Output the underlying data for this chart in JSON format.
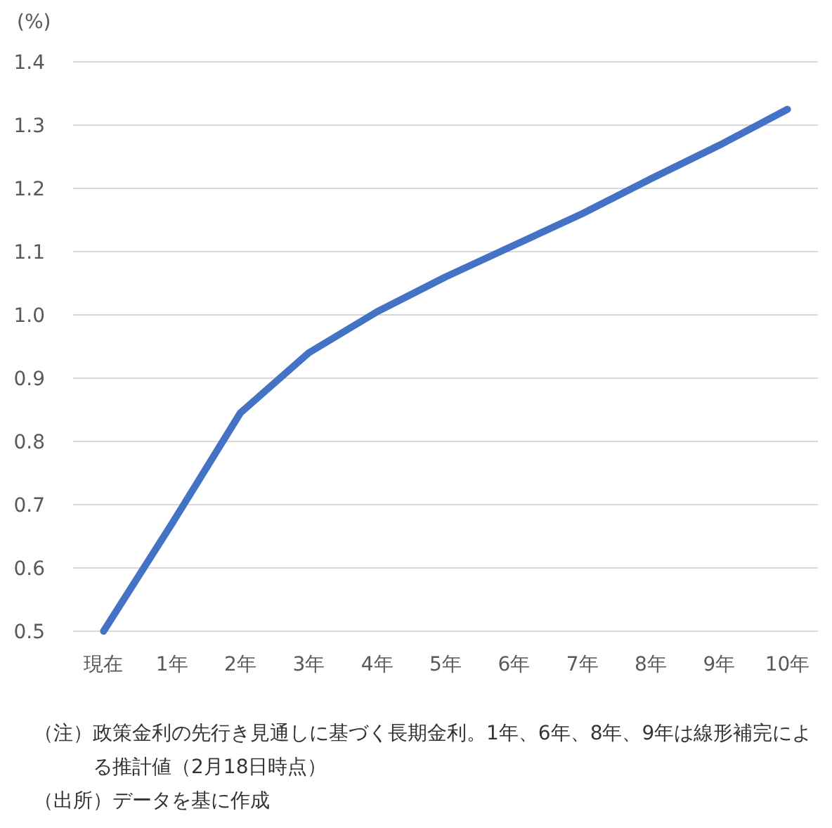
{
  "chart_data": {
    "type": "line",
    "ylabel": "(%)",
    "categories": [
      "現在",
      "1年",
      "2年",
      "3年",
      "4年",
      "5年",
      "6年",
      "7年",
      "8年",
      "9年",
      "10年"
    ],
    "series": [
      {
        "color": "#4472c4",
        "values": [
          0.5,
          0.67,
          0.845,
          0.94,
          1.005,
          1.06,
          1.11,
          1.16,
          1.215,
          1.268,
          1.325
        ]
      }
    ],
    "ylim": [
      0.5,
      1.4
    ],
    "yticks": [
      {
        "value": 0.5,
        "label": "0.5"
      },
      {
        "value": 0.6,
        "label": "0.6"
      },
      {
        "value": 0.7,
        "label": "0.7"
      },
      {
        "value": 0.8,
        "label": "0.8"
      },
      {
        "value": 0.9,
        "label": "0.9"
      },
      {
        "value": 1.0,
        "label": "1.0"
      },
      {
        "value": 1.1,
        "label": "1.1"
      },
      {
        "value": 1.2,
        "label": "1.2"
      },
      {
        "value": 1.3,
        "label": "1.3"
      },
      {
        "value": 1.4,
        "label": "1.4"
      }
    ],
    "grid": "y",
    "marker": "none",
    "line_style": "solid",
    "annotations": [
      "（注）政策金利の先行き見通しに基づく長期金利。1年、6年、8年、9年は線形補完による推計値（2月18日時点）",
      "（出所）データを基に作成"
    ]
  }
}
